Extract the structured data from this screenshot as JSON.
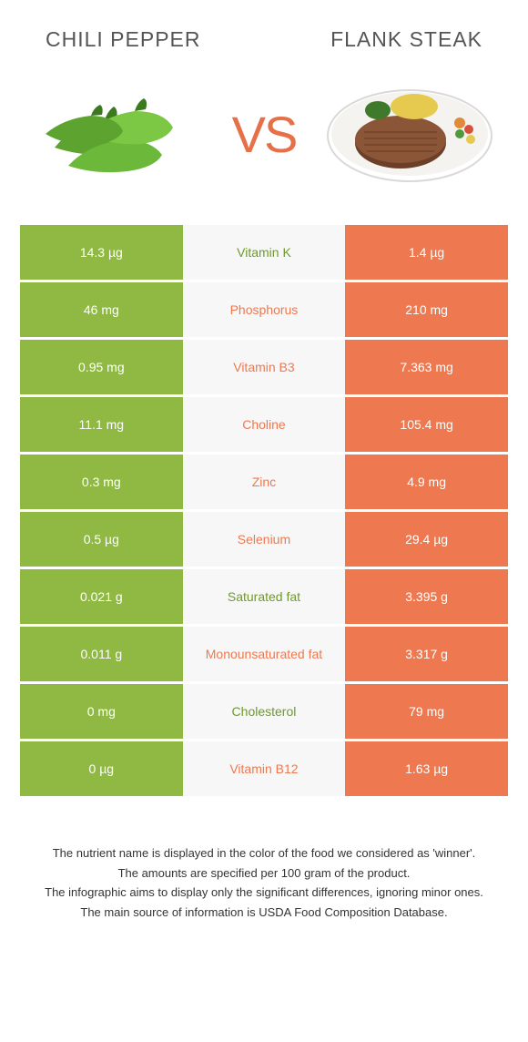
{
  "colors": {
    "left": "#8fb942",
    "right": "#ee7950",
    "mid_bg": "#f7f7f7",
    "winner_left_text": "#6f9a2b",
    "winner_right_text": "#ee7950",
    "vs": "#e67048",
    "title": "#555555",
    "footer": "#333333"
  },
  "header": {
    "left_title": "Chili pepper",
    "right_title": "Flank steak",
    "vs": "VS"
  },
  "rows": [
    {
      "left": "14.3 µg",
      "label": "Vitamin K",
      "right": "1.4 µg",
      "winner": "left"
    },
    {
      "left": "46 mg",
      "label": "Phosphorus",
      "right": "210 mg",
      "winner": "right"
    },
    {
      "left": "0.95 mg",
      "label": "Vitamin B3",
      "right": "7.363 mg",
      "winner": "right"
    },
    {
      "left": "11.1 mg",
      "label": "Choline",
      "right": "105.4 mg",
      "winner": "right"
    },
    {
      "left": "0.3 mg",
      "label": "Zinc",
      "right": "4.9 mg",
      "winner": "right"
    },
    {
      "left": "0.5 µg",
      "label": "Selenium",
      "right": "29.4 µg",
      "winner": "right"
    },
    {
      "left": "0.021 g",
      "label": "Saturated fat",
      "right": "3.395 g",
      "winner": "left"
    },
    {
      "left": "0.011 g",
      "label": "Monounsaturated fat",
      "right": "3.317 g",
      "winner": "right"
    },
    {
      "left": "0 mg",
      "label": "Cholesterol",
      "right": "79 mg",
      "winner": "left"
    },
    {
      "left": "0 µg",
      "label": "Vitamin B12",
      "right": "1.63 µg",
      "winner": "right"
    }
  ],
  "footer": {
    "lines": [
      "The nutrient name is displayed in the color of the food we considered as 'winner'.",
      "The amounts are specified per 100 gram of the product.",
      "The infographic aims to display only the significant differences, ignoring minor ones.",
      "The main source of information is USDA Food Composition Database."
    ]
  }
}
